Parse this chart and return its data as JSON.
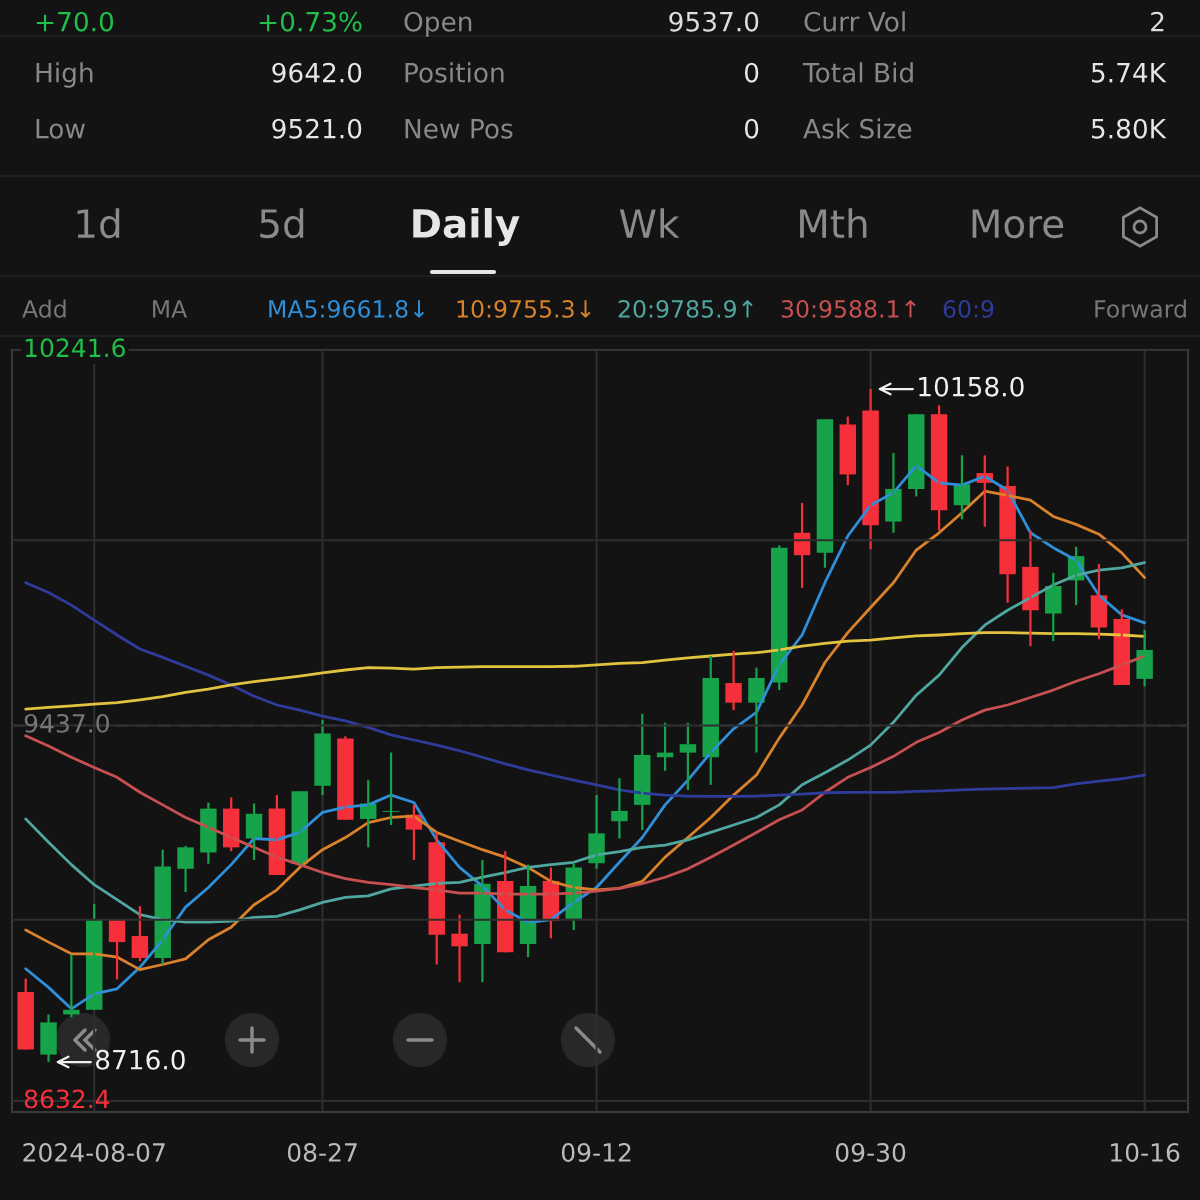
{
  "chart_data": {
    "type": "candlestick",
    "categories": [
      null,
      null,
      null,
      "2024-08-07",
      null,
      null,
      null,
      null,
      null,
      null,
      null,
      null,
      null,
      "08-27",
      null,
      null,
      null,
      null,
      null,
      null,
      null,
      null,
      null,
      null,
      null,
      "09-12",
      null,
      null,
      null,
      null,
      null,
      null,
      null,
      null,
      null,
      null,
      null,
      "09-30",
      null,
      null,
      null,
      null,
      null,
      null,
      null,
      null,
      null,
      null,
      null,
      "10-16"
    ],
    "ohlc": [
      [
        8866,
        8895,
        8743,
        8743
      ],
      [
        8732,
        8818,
        8716.0,
        8801
      ],
      [
        8818,
        8946,
        8812,
        8828
      ],
      [
        8828,
        9055,
        8828,
        9021
      ],
      [
        9021,
        9021,
        8893,
        8973
      ],
      [
        8986,
        9050,
        8932,
        8939
      ],
      [
        8939,
        9171,
        8925,
        9135
      ],
      [
        9130,
        9179,
        9080,
        9176
      ],
      [
        9165,
        9272,
        9141,
        9259
      ],
      [
        9259,
        9283,
        9168,
        9176
      ],
      [
        9195,
        9270,
        9149,
        9248
      ],
      [
        9259,
        9288,
        9117,
        9117
      ],
      [
        9141,
        9296,
        9139,
        9296
      ],
      [
        9308,
        9449,
        9288,
        9420
      ],
      [
        9409,
        9414,
        9235,
        9235
      ],
      [
        9237,
        9320,
        9176,
        9270
      ],
      [
        9252,
        9379,
        9224,
        9254
      ],
      [
        9246,
        9267,
        9149,
        9214
      ],
      [
        9187,
        9208,
        8925,
        8989
      ],
      [
        8991,
        9032,
        8887,
        8964
      ],
      [
        8969,
        9149,
        8887,
        9098
      ],
      [
        9104,
        9168,
        8951,
        8951
      ],
      [
        8969,
        9139,
        8941,
        9093
      ],
      [
        9104,
        9133,
        8981,
        9018
      ],
      [
        9023,
        9141,
        8999,
        9133
      ],
      [
        9142,
        9288,
        9130,
        9206
      ],
      [
        9232,
        9324,
        9195,
        9254
      ],
      [
        9267,
        9462,
        9213,
        9374
      ],
      [
        9369,
        9443,
        9340,
        9379
      ],
      [
        9379,
        9443,
        9299,
        9397
      ],
      [
        9369,
        9586,
        9310,
        9539
      ],
      [
        9528,
        9597,
        9470,
        9486
      ],
      [
        9486,
        9561,
        9379,
        9539
      ],
      [
        9529,
        9823,
        9513,
        9818
      ],
      [
        9850,
        9914,
        9732,
        9802
      ],
      [
        9807,
        10093,
        9775,
        10093
      ],
      [
        10082,
        10099,
        9952,
        9975
      ],
      [
        10112,
        10158.0,
        9815,
        9866
      ],
      [
        9874,
        10021,
        9850,
        9944
      ],
      [
        9944,
        10104,
        9928,
        10104
      ],
      [
        10104,
        10123,
        9855,
        9898
      ],
      [
        9909,
        10016,
        9879,
        9954
      ],
      [
        9978,
        10016,
        9863,
        9957
      ],
      [
        9950,
        9992,
        9700,
        9761
      ],
      [
        9777,
        9855,
        9607,
        9684
      ],
      [
        9677,
        9764,
        9618,
        9736
      ],
      [
        9748,
        9820,
        9695,
        9800
      ],
      [
        9716,
        9783,
        9622,
        9647
      ],
      [
        9665,
        9686,
        9524,
        9524
      ],
      [
        9537.0,
        9642.0,
        9521.0,
        9599
      ]
    ],
    "series": [
      {
        "type": "line",
        "color": "#2f8fd8",
        "values": [
          8916,
          8876,
          8830,
          8862,
          8873,
          8919,
          8978,
          9048,
          9090,
          9139,
          9195,
          9192,
          9208,
          9251,
          9262,
          9267,
          9288,
          9272,
          9192,
          9133,
          9093,
          9042,
          9015,
          9021,
          9058,
          9090,
          9144,
          9197,
          9267,
          9320,
          9379,
          9430,
          9465,
          9567,
          9631,
          9743,
          9843,
          9909,
          9936,
          9994,
          9957,
          9952,
          9971,
          9941,
          9850,
          9818,
          9791,
          9716,
          9674,
          9657
        ]
      },
      {
        "type": "line",
        "color": "#d9822b",
        "values": [
          8999,
          8973,
          8948,
          8948,
          8941,
          8914,
          8925,
          8937,
          8978,
          9005,
          9053,
          9085,
          9133,
          9171,
          9197,
          9229,
          9240,
          9243,
          9208,
          9189,
          9171,
          9155,
          9133,
          9103,
          9090,
          9085,
          9088,
          9103,
          9155,
          9197,
          9240,
          9288,
          9331,
          9410,
          9481,
          9572,
          9636,
          9690,
          9743,
          9813,
          9850,
          9893,
          9939,
          9930,
          9920,
          9885,
          9868,
          9847,
          9807,
          9754
        ]
      },
      {
        "type": "line",
        "color": "#4fa7a0",
        "values": [
          9237,
          9187,
          9139,
          9096,
          9064,
          9032,
          9021,
          9016,
          9016,
          9018,
          9026,
          9028,
          9042,
          9058,
          9069,
          9072,
          9087,
          9093,
          9099,
          9101,
          9112,
          9122,
          9133,
          9139,
          9144,
          9160,
          9167,
          9176,
          9181,
          9192,
          9208,
          9224,
          9240,
          9267,
          9310,
          9336,
          9363,
          9395,
          9444,
          9502,
          9545,
          9604,
          9652,
          9684,
          9711,
          9738,
          9759,
          9770,
          9775,
          9786
        ]
      },
      {
        "type": "line",
        "color": "#c95050",
        "values": [
          9415,
          9393,
          9369,
          9347,
          9326,
          9294,
          9267,
          9240,
          9219,
          9197,
          9176,
          9155,
          9139,
          9122,
          9109,
          9101,
          9096,
          9090,
          9085,
          9078,
          9078,
          9076,
          9076,
          9076,
          9078,
          9082,
          9088,
          9098,
          9112,
          9130,
          9155,
          9181,
          9208,
          9235,
          9256,
          9294,
          9326,
          9347,
          9371,
          9401,
          9422,
          9449,
          9470,
          9481,
          9497,
          9513,
          9532,
          9548,
          9567,
          9586
        ]
      },
      {
        "type": "line",
        "color": "#2f3c9c",
        "values": [
          9743,
          9722,
          9695,
          9663,
          9631,
          9601,
          9583,
          9564,
          9545,
          9524,
          9500,
          9481,
          9470,
          9457,
          9447,
          9433,
          9417,
          9406,
          9395,
          9383,
          9369,
          9355,
          9342,
          9331,
          9320,
          9310,
          9299,
          9292,
          9288,
          9286,
          9285,
          9285,
          9286,
          9288,
          9290,
          9293,
          9294,
          9294,
          9294,
          9296,
          9297,
          9299,
          9301,
          9302,
          9303,
          9304,
          9312,
          9318,
          9323,
          9331
        ]
      },
      {
        "type": "line",
        "color": "#e2c23e",
        "values": [
          9472,
          9476,
          9479,
          9483,
          9486,
          9492,
          9499,
          9508,
          9515,
          9524,
          9531,
          9537,
          9543,
          9550,
          9556,
          9561,
          9560,
          9558,
          9561,
          9562,
          9563,
          9563,
          9563,
          9563,
          9564,
          9567,
          9570,
          9572,
          9577,
          9582,
          9586,
          9590,
          9593,
          9599,
          9607,
          9613,
          9618,
          9620,
          9625,
          9629,
          9631,
          9634,
          9636,
          9636,
          9635,
          9634,
          9634,
          9633,
          9631,
          9628
        ]
      }
    ],
    "ylim": [
      8609,
      10241.6
    ],
    "yticks": [
      {
        "value": 8632.4,
        "label": "8632.4"
      },
      {
        "value": 9021,
        "label": null
      },
      {
        "value": 9437.0,
        "label": "9437.0"
      },
      {
        "value": 9834,
        "label": null
      },
      {
        "value": 10241.6,
        "label": "10241.6"
      }
    ],
    "ref_lines": [
      {
        "axis": "y",
        "value": 9437.0,
        "line_style": "dashed"
      }
    ],
    "grid": true,
    "annotations": [
      "+70.0",
      "+0.73%",
      "Open",
      "9537.0",
      "Curr Vol",
      "2",
      "High",
      "9642.0",
      "Position",
      "0",
      "Total Bid",
      "5.74K",
      "Low",
      "9521.0",
      "New Pos",
      "0",
      "Ask Size",
      "5.80K",
      "1d",
      "5d",
      "Daily",
      "Wk",
      "Mth",
      "More",
      "Add",
      "MA",
      "MA5:9661.8↓",
      "10:9755.3↓",
      "20:9785.9↑",
      "30:9588.1↑",
      "60:9",
      "Forward",
      "10158.0",
      "8716.0"
    ]
  }
}
